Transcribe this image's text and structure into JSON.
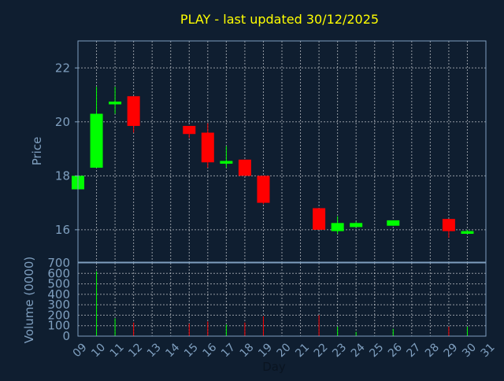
{
  "colors": {
    "background": "#0f1e30",
    "title": "#ffff00",
    "axis_text": "#7f9fbf",
    "grid": "#ffffff",
    "frame": "#7f9fbf",
    "up": "#00ff00",
    "down": "#ff0000"
  },
  "chart_data": {
    "type": "candlestick",
    "title": "PLAY - last updated 30/12/2025",
    "xlabel": "Day",
    "price_panel": {
      "ylabel": "Price",
      "ylim": [
        14.8,
        23.0
      ],
      "yticks": [
        16,
        18,
        20,
        22
      ]
    },
    "volume_panel": {
      "ylabel": "Volume (0000)",
      "ylim": [
        0,
        700
      ],
      "yticks": [
        0,
        100,
        200,
        300,
        400,
        500,
        600,
        700
      ]
    },
    "x_tick_labels": [
      "09",
      "10",
      "11",
      "12",
      "13",
      "14",
      "15",
      "16",
      "17",
      "18",
      "19",
      "20",
      "21",
      "22",
      "23",
      "24",
      "25",
      "26",
      "27",
      "28",
      "29",
      "30",
      "31"
    ],
    "candles": [
      {
        "day": "09",
        "open": 17.5,
        "high": 18.0,
        "low": 17.5,
        "close": 18.0,
        "volume": 0
      },
      {
        "day": "10",
        "open": 18.3,
        "high": 21.3,
        "low": 18.3,
        "close": 20.3,
        "volume": 620
      },
      {
        "day": "11",
        "open": 20.65,
        "high": 21.3,
        "low": 20.3,
        "close": 20.75,
        "volume": 170
      },
      {
        "day": "12",
        "open": 20.95,
        "high": 20.95,
        "low": 19.6,
        "close": 19.85,
        "volume": 130
      },
      {
        "day": "15",
        "open": 19.85,
        "high": 19.85,
        "low": 19.4,
        "close": 19.55,
        "volume": 120
      },
      {
        "day": "16",
        "open": 19.6,
        "high": 19.95,
        "low": 18.3,
        "close": 18.5,
        "volume": 140
      },
      {
        "day": "17",
        "open": 18.45,
        "high": 19.1,
        "low": 18.3,
        "close": 18.55,
        "volume": 110
      },
      {
        "day": "18",
        "open": 18.6,
        "high": 18.6,
        "low": 18.0,
        "close": 18.0,
        "volume": 130
      },
      {
        "day": "19",
        "open": 18.0,
        "high": 18.0,
        "low": 16.95,
        "close": 17.0,
        "volume": 190
      },
      {
        "day": "22",
        "open": 16.8,
        "high": 16.8,
        "low": 16.0,
        "close": 16.0,
        "volume": 200
      },
      {
        "day": "23",
        "open": 15.95,
        "high": 16.5,
        "low": 15.85,
        "close": 16.25,
        "volume": 90
      },
      {
        "day": "24",
        "open": 16.1,
        "high": 16.3,
        "low": 16.1,
        "close": 16.25,
        "volume": 40
      },
      {
        "day": "26",
        "open": 16.15,
        "high": 16.35,
        "low": 16.15,
        "close": 16.35,
        "volume": 70
      },
      {
        "day": "29",
        "open": 16.4,
        "high": 16.4,
        "low": 15.7,
        "close": 15.95,
        "volume": 90
      },
      {
        "day": "30",
        "open": 15.85,
        "high": 16.0,
        "low": 15.85,
        "close": 15.95,
        "volume": 90
      }
    ]
  }
}
